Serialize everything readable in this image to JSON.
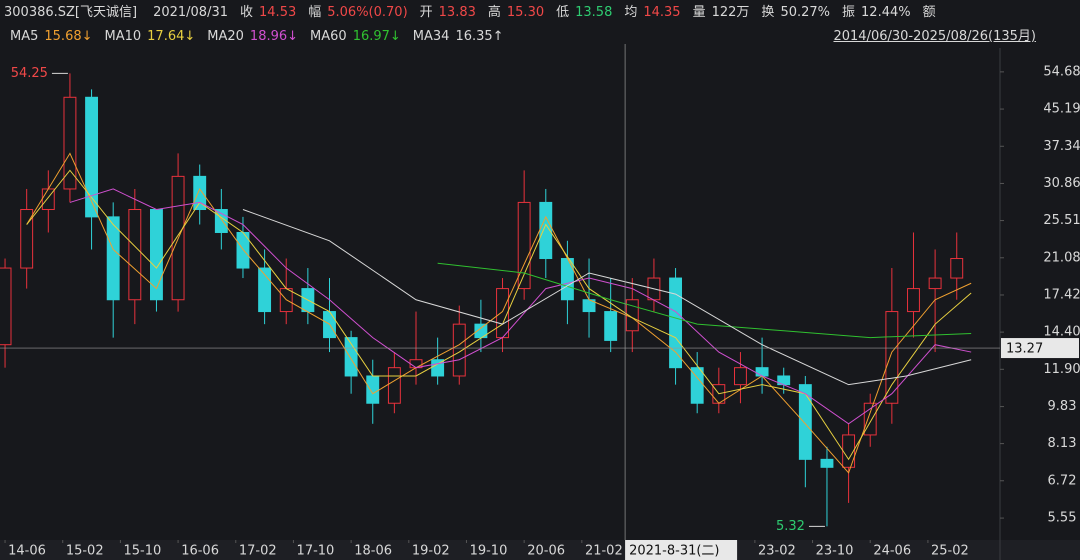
{
  "chart_data": {
    "type": "candlestick",
    "header": {
      "code": "300386.SZ[飞天诚信]",
      "date": "2021/08/31",
      "fields": [
        {
          "label": "收",
          "value": "14.53",
          "color": "#f04848"
        },
        {
          "label": "幅",
          "value": "5.06%(0.70)",
          "color": "#f04848"
        },
        {
          "label": "开",
          "value": "13.83",
          "color": "#f04848"
        },
        {
          "label": "高",
          "value": "15.30",
          "color": "#f04848"
        },
        {
          "label": "低",
          "value": "13.58",
          "color": "#2ecc71"
        },
        {
          "label": "均",
          "value": "14.35",
          "color": "#f04848"
        },
        {
          "label": "量",
          "value": "122万",
          "color": "#d8d8d8"
        },
        {
          "label": "换",
          "value": "50.27%",
          "color": "#d8d8d8"
        },
        {
          "label": "振",
          "value": "12.44%",
          "color": "#d8d8d8"
        },
        {
          "label": "额",
          "value": "",
          "color": "#d8d8d8"
        }
      ],
      "range": "2014/06/30-2025/08/26(135月)"
    },
    "up_color": "#e8323c",
    "down_color": "#2fd2d8",
    "x": [
      0,
      3,
      6,
      9,
      12,
      15,
      18,
      21,
      24,
      27,
      30,
      33,
      36,
      39,
      42,
      45,
      48,
      51,
      54,
      57,
      60,
      63,
      66,
      69,
      72,
      75,
      78,
      81,
      84,
      87,
      90,
      93,
      96,
      99,
      102,
      105,
      108,
      111,
      114,
      117,
      120,
      123,
      126,
      129,
      132
    ],
    "open": [
      13.5,
      20,
      27,
      30,
      48,
      26,
      17,
      27,
      17,
      32,
      27,
      24,
      20,
      16,
      18,
      16,
      14,
      11.5,
      10,
      12,
      12.5,
      11.5,
      15,
      14,
      18,
      28,
      21,
      17,
      16,
      14.5,
      17,
      19,
      12,
      10,
      11,
      12,
      11.5,
      11,
      7.5,
      7.2,
      8.5,
      10,
      16,
      18,
      19
    ],
    "high": [
      21,
      30,
      33,
      54.25,
      50,
      28,
      30,
      27,
      36,
      34,
      30,
      26,
      22,
      21,
      20,
      19,
      14.5,
      12.5,
      13,
      16,
      14,
      16.5,
      17,
      19,
      33,
      30,
      23,
      21,
      19,
      19,
      21,
      20,
      13,
      12,
      13,
      14,
      12,
      11.5,
      8,
      9,
      10.5,
      20,
      24,
      22,
      24
    ],
    "low": [
      12,
      18,
      24,
      28,
      22,
      14,
      15,
      16,
      16,
      25,
      22,
      19,
      15,
      15,
      15,
      13,
      10.5,
      9,
      9.5,
      11,
      11,
      11,
      13,
      13,
      17,
      19,
      15,
      14,
      13,
      13,
      16,
      11,
      9.5,
      9.5,
      10,
      10.5,
      10.5,
      6.5,
      5.32,
      6,
      8,
      9,
      14,
      13,
      17
    ],
    "close": [
      20,
      27,
      30,
      48,
      26,
      17,
      27,
      17,
      32,
      27,
      24,
      20,
      16,
      18,
      16,
      14,
      11.5,
      10,
      12,
      12.5,
      11.5,
      15,
      14,
      18,
      28,
      21,
      17,
      16,
      13.8,
      17,
      19,
      12,
      10,
      11,
      12,
      11.5,
      11,
      7.5,
      7.2,
      8.5,
      10,
      16,
      18,
      19,
      21
    ],
    "series": [
      {
        "name": "MA5",
        "label": "15.68↓",
        "color": "#f0a030",
        "x": [
          3,
          9,
          15,
          21,
          27,
          33,
          39,
          45,
          51,
          57,
          63,
          69,
          75,
          81,
          87,
          93,
          99,
          105,
          111,
          117,
          123,
          129,
          134
        ],
        "values": [
          25,
          36,
          22,
          18,
          30,
          22,
          17,
          15,
          10.5,
          12,
          13.5,
          16,
          26,
          17,
          15.5,
          13,
          10,
          11.5,
          9,
          7,
          13,
          17,
          18.5
        ]
      },
      {
        "name": "MA10",
        "label": "17.64↓",
        "color": "#e8d040",
        "x": [
          3,
          9,
          15,
          21,
          27,
          33,
          39,
          45,
          51,
          57,
          63,
          69,
          75,
          81,
          87,
          93,
          99,
          105,
          111,
          117,
          123,
          129,
          134
        ],
        "values": [
          25,
          33,
          25,
          20,
          28,
          24,
          18,
          16,
          11.5,
          11.5,
          13,
          15,
          25,
          18,
          15.5,
          14,
          10.5,
          11,
          10.5,
          7.5,
          11,
          15,
          17.6
        ]
      },
      {
        "name": "MA20",
        "label": "18.96↓",
        "color": "#d050d0",
        "x": [
          9,
          15,
          21,
          27,
          33,
          39,
          45,
          51,
          57,
          63,
          69,
          75,
          81,
          87,
          93,
          99,
          105,
          111,
          117,
          123,
          129,
          134
        ],
        "values": [
          28,
          30,
          27,
          28,
          25,
          20,
          17,
          14,
          12,
          12.5,
          14,
          18,
          19,
          18,
          16,
          13,
          11.5,
          10.5,
          9,
          10.5,
          13.5,
          13
        ]
      },
      {
        "name": "MA60",
        "label": "16.97↓",
        "color": "#30c030",
        "x": [
          60,
          72,
          84,
          96,
          108,
          120,
          134
        ],
        "values": [
          20.5,
          19.5,
          17,
          15,
          14.5,
          14,
          14.3
        ]
      },
      {
        "name": "MA34",
        "label": "16.35↑",
        "color": "#d8d8d8",
        "x": [
          33,
          45,
          57,
          69,
          81,
          93,
          105,
          117,
          125,
          134
        ],
        "values": [
          27,
          23,
          17,
          15,
          19.5,
          17.5,
          13.5,
          11,
          11.5,
          12.5
        ]
      }
    ],
    "annotations": [
      {
        "x": 9,
        "y": 54.25,
        "color": "#f04848",
        "side": "left"
      },
      {
        "x": 114,
        "y": 5.32,
        "color": "#2ecc71",
        "side": "left"
      }
    ],
    "crosshair": {
      "x": 86,
      "x_label": "2021-8-31(二)",
      "y": 13.27
    },
    "log_y": true,
    "grid": false,
    "xlim": [
      -0.7,
      138
    ],
    "ylim": [
      4.96,
      61.8
    ],
    "yticks": [
      5.55,
      6.72,
      8.13,
      9.83,
      {
        "value": 11.9,
        "label": "11.90"
      },
      {
        "value": 14.4,
        "label": "14.40"
      },
      17.42,
      21.08,
      25.51,
      30.86,
      37.34,
      45.19,
      54.68
    ],
    "xticks": [
      {
        "value": 0,
        "label": "14-06"
      },
      {
        "value": 8,
        "label": "15-02"
      },
      {
        "value": 16,
        "label": "15-10"
      },
      {
        "value": 24,
        "label": "16-06"
      },
      {
        "value": 32,
        "label": "17-02"
      },
      {
        "value": 40,
        "label": "17-10"
      },
      {
        "value": 48,
        "label": "18-06"
      },
      {
        "value": 56,
        "label": "19-02"
      },
      {
        "value": 64,
        "label": "19-10"
      },
      {
        "value": 72,
        "label": "20-06"
      },
      {
        "value": 80,
        "label": "21-02"
      },
      {
        "value": 104,
        "label": "23-02"
      },
      {
        "value": 112,
        "label": "23-10"
      },
      {
        "value": 120,
        "label": "24-06"
      },
      {
        "value": 128,
        "label": "25-02"
      }
    ]
  }
}
